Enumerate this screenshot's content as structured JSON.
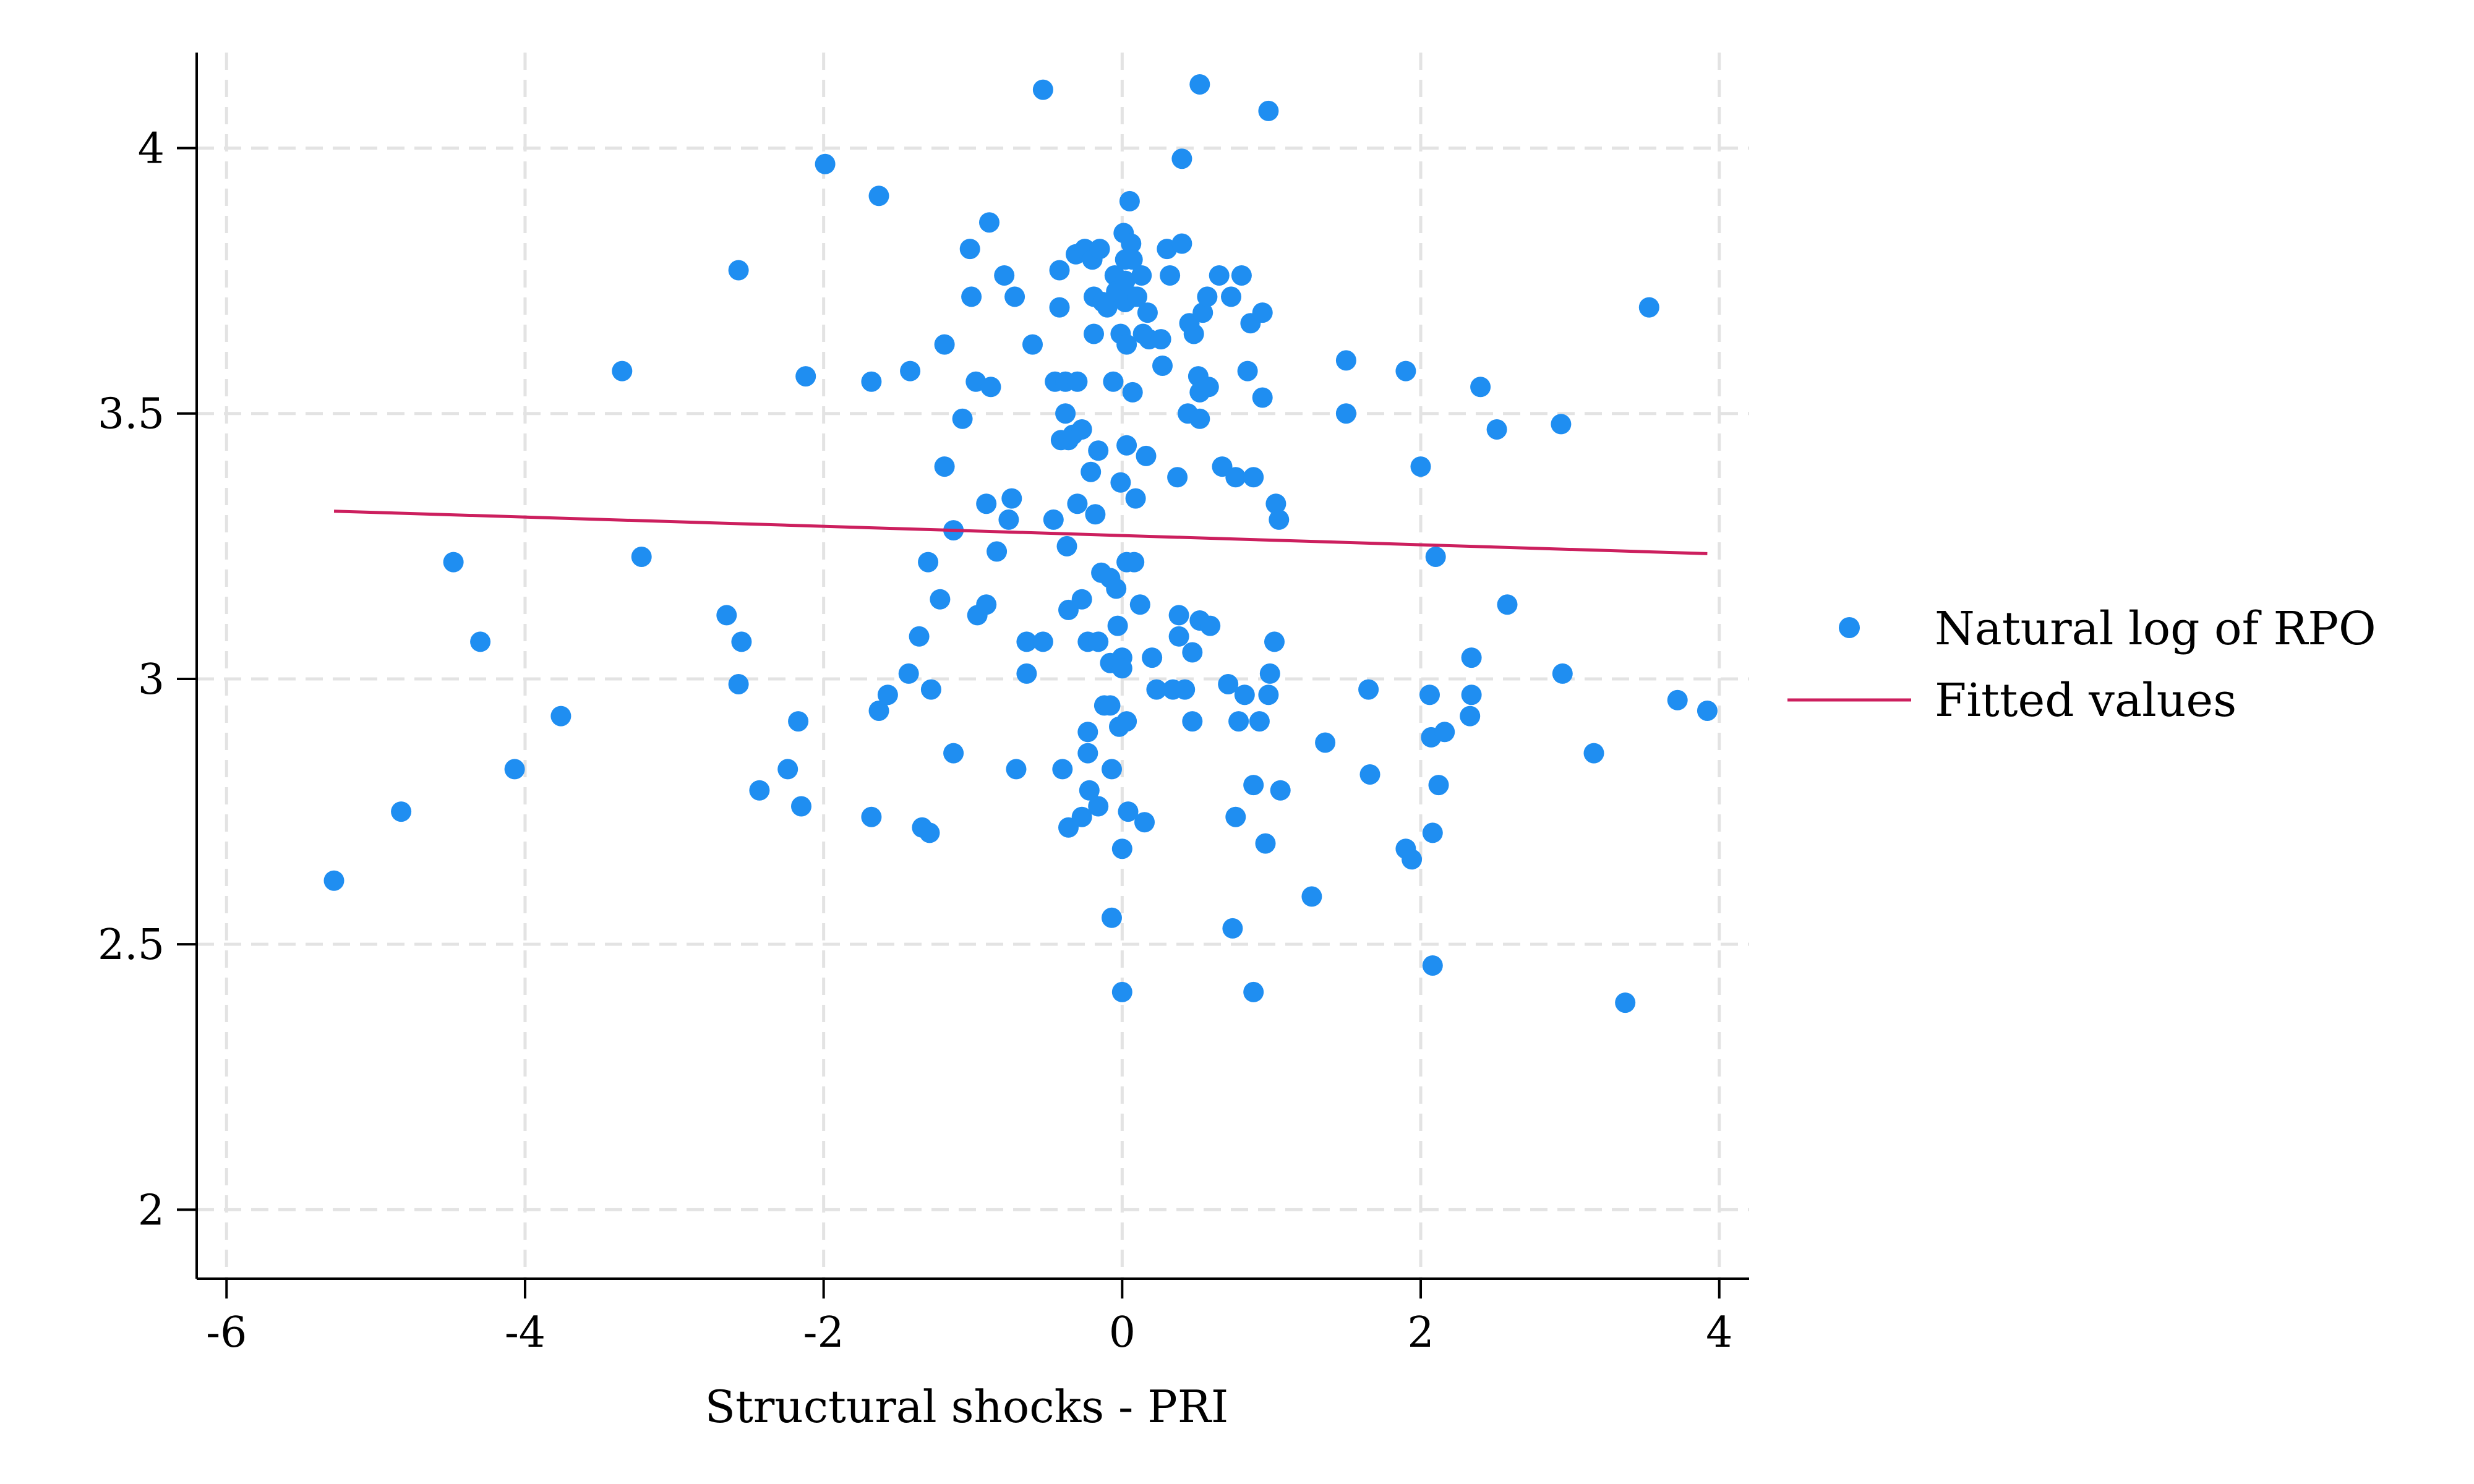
{
  "chart_data": {
    "type": "scatter",
    "title": "",
    "xlabel": "Structural shocks - PRI",
    "ylabel": "",
    "xlim": [
      -6.2,
      4.2
    ],
    "ylim": [
      1.87,
      4.18
    ],
    "x_ticks": [
      -6,
      -4,
      -2,
      0,
      2,
      4
    ],
    "x_tick_labels": [
      "-6",
      "-4",
      "-2",
      "0",
      "2",
      "4"
    ],
    "y_ticks": [
      2,
      2.5,
      3,
      3.5,
      4
    ],
    "y_tick_labels": [
      "2",
      "2.5",
      "3",
      "3.5",
      "4"
    ],
    "grid": true,
    "legend_position": "right",
    "colors": {
      "points": "#1f8ef1",
      "fit": "#cc1f5e",
      "grid": "#e3e3e3",
      "axis": "#000000"
    },
    "series": [
      {
        "name": "Natural log of RPO",
        "type": "scatter",
        "points": [
          [
            -5.28,
            2.62
          ],
          [
            -4.83,
            2.75
          ],
          [
            -4.48,
            3.22
          ],
          [
            -4.3,
            3.07
          ],
          [
            -4.07,
            2.83
          ],
          [
            -3.76,
            2.93
          ],
          [
            -3.35,
            3.58
          ],
          [
            -3.22,
            3.23
          ],
          [
            -2.65,
            3.12
          ],
          [
            -2.57,
            3.77
          ],
          [
            -2.55,
            3.07
          ],
          [
            -2.57,
            2.99
          ],
          [
            -2.43,
            2.79
          ],
          [
            -2.24,
            2.83
          ],
          [
            -2.17,
            2.92
          ],
          [
            -2.15,
            2.76
          ],
          [
            -2.12,
            3.57
          ],
          [
            -1.99,
            3.97
          ],
          [
            -1.68,
            3.56
          ],
          [
            -1.68,
            2.74
          ],
          [
            -1.63,
            3.91
          ],
          [
            -1.63,
            2.94
          ],
          [
            -1.57,
            2.97
          ],
          [
            -1.43,
            3.01
          ],
          [
            -1.42,
            3.58
          ],
          [
            -1.36,
            3.08
          ],
          [
            -1.34,
            2.72
          ],
          [
            -1.29,
            2.71
          ],
          [
            -1.3,
            3.22
          ],
          [
            -1.28,
            2.98
          ],
          [
            -1.22,
            3.15
          ],
          [
            -1.19,
            3.4
          ],
          [
            -1.19,
            3.63
          ],
          [
            -1.13,
            2.86
          ],
          [
            -1.13,
            3.28
          ],
          [
            -1.07,
            3.49
          ],
          [
            -1.02,
            3.81
          ],
          [
            -1.01,
            3.72
          ],
          [
            -0.98,
            3.56
          ],
          [
            -0.97,
            3.12
          ],
          [
            -0.91,
            3.14
          ],
          [
            -0.91,
            3.33
          ],
          [
            -0.88,
            3.55
          ],
          [
            -0.89,
            3.86
          ],
          [
            -0.84,
            3.24
          ],
          [
            -0.79,
            3.76
          ],
          [
            -0.76,
            3.3
          ],
          [
            -0.74,
            3.34
          ],
          [
            -0.72,
            3.72
          ],
          [
            -0.71,
            2.83
          ],
          [
            -0.64,
            3.07
          ],
          [
            -0.64,
            3.01
          ],
          [
            -0.6,
            3.63
          ],
          [
            -0.53,
            3.07
          ],
          [
            -0.53,
            4.11
          ],
          [
            -0.46,
            3.3
          ],
          [
            -0.45,
            3.56
          ],
          [
            -0.41,
            3.45
          ],
          [
            -0.42,
            3.7
          ],
          [
            -0.42,
            3.77
          ],
          [
            -0.4,
            2.83
          ],
          [
            -0.38,
            3.56
          ],
          [
            -0.38,
            3.5
          ],
          [
            -0.37,
            3.25
          ],
          [
            -0.36,
            3.45
          ],
          [
            -0.36,
            3.13
          ],
          [
            -0.36,
            2.72
          ],
          [
            -0.33,
            3.46
          ],
          [
            -0.31,
            3.8
          ],
          [
            -0.3,
            3.56
          ],
          [
            -0.3,
            3.33
          ],
          [
            -0.27,
            3.47
          ],
          [
            -0.27,
            3.15
          ],
          [
            -0.27,
            2.74
          ],
          [
            -0.25,
            3.81
          ],
          [
            -0.23,
            2.9
          ],
          [
            -0.23,
            3.07
          ],
          [
            -0.23,
            2.86
          ],
          [
            -0.22,
            2.79
          ],
          [
            -0.21,
            3.39
          ],
          [
            -0.2,
            3.79
          ],
          [
            -0.19,
            3.72
          ],
          [
            -0.19,
            3.65
          ],
          [
            -0.18,
            3.31
          ],
          [
            -0.16,
            3.43
          ],
          [
            -0.16,
            3.07
          ],
          [
            -0.16,
            2.76
          ],
          [
            -0.15,
            3.81
          ],
          [
            -0.14,
            3.2
          ],
          [
            -0.13,
            3.71
          ],
          [
            -0.12,
            2.95
          ],
          [
            -0.1,
            3.7
          ],
          [
            -0.08,
            3.19
          ],
          [
            -0.08,
            3.03
          ],
          [
            -0.08,
            2.95
          ],
          [
            -0.07,
            2.83
          ],
          [
            -0.07,
            2.55
          ],
          [
            -0.06,
            3.56
          ],
          [
            -0.05,
            3.76
          ],
          [
            -0.04,
            3.73
          ],
          [
            -0.04,
            3.17
          ],
          [
            -0.03,
            3.1
          ],
          [
            -0.02,
            2.91
          ],
          [
            -0.01,
            3.37
          ],
          [
            -0.01,
            3.65
          ],
          [
            0,
            3.04
          ],
          [
            0,
            3.02
          ],
          [
            0,
            2.68
          ],
          [
            0,
            2.41
          ],
          [
            0.01,
            3.84
          ],
          [
            0.02,
            3.79
          ],
          [
            0.02,
            3.75
          ],
          [
            0.02,
            3.71
          ],
          [
            0.03,
            3.63
          ],
          [
            0.03,
            3.44
          ],
          [
            0.03,
            3.22
          ],
          [
            0.03,
            2.92
          ],
          [
            0.04,
            2.75
          ],
          [
            0.05,
            3.9
          ],
          [
            0.06,
            3.82
          ],
          [
            0.07,
            3.79
          ],
          [
            0.07,
            3.54
          ],
          [
            0.08,
            3.72
          ],
          [
            0.08,
            3.22
          ],
          [
            0.09,
            3.34
          ],
          [
            0.1,
            3.72
          ],
          [
            0.12,
            3.14
          ],
          [
            0.13,
            3.76
          ],
          [
            0.14,
            3.65
          ],
          [
            0.15,
            2.73
          ],
          [
            0.16,
            3.42
          ],
          [
            0.17,
            3.69
          ],
          [
            0.18,
            3.64
          ],
          [
            0.2,
            3.04
          ],
          [
            0.23,
            2.98
          ],
          [
            0.26,
            3.64
          ],
          [
            0.27,
            3.59
          ],
          [
            0.3,
            3.81
          ],
          [
            0.32,
            3.76
          ],
          [
            0.34,
            2.98
          ],
          [
            0.37,
            3.38
          ],
          [
            0.38,
            3.12
          ],
          [
            0.38,
            3.08
          ],
          [
            0.4,
            3.82
          ],
          [
            0.4,
            3.98
          ],
          [
            0.42,
            2.98
          ],
          [
            0.44,
            3.5
          ],
          [
            0.45,
            3.67
          ],
          [
            0.47,
            3.05
          ],
          [
            0.47,
            2.92
          ],
          [
            0.48,
            3.65
          ],
          [
            0.51,
            3.57
          ],
          [
            0.52,
            3.54
          ],
          [
            0.52,
            3.49
          ],
          [
            0.52,
            3.11
          ],
          [
            0.52,
            4.12
          ],
          [
            0.54,
            3.69
          ],
          [
            0.57,
            3.72
          ],
          [
            0.58,
            3.55
          ],
          [
            0.59,
            3.1
          ],
          [
            0.65,
            3.76
          ],
          [
            0.67,
            3.4
          ],
          [
            0.71,
            2.99
          ],
          [
            0.73,
            3.72
          ],
          [
            0.74,
            2.53
          ],
          [
            0.76,
            3.38
          ],
          [
            0.76,
            2.74
          ],
          [
            0.78,
            2.92
          ],
          [
            0.8,
            3.76
          ],
          [
            0.82,
            2.97
          ],
          [
            0.84,
            3.58
          ],
          [
            0.86,
            3.67
          ],
          [
            0.88,
            3.38
          ],
          [
            0.88,
            2.8
          ],
          [
            0.88,
            2.41
          ],
          [
            0.92,
            2.92
          ],
          [
            0.94,
            3.53
          ],
          [
            0.94,
            3.69
          ],
          [
            0.96,
            2.69
          ],
          [
            0.98,
            2.97
          ],
          [
            0.98,
            4.07
          ],
          [
            0.99,
            3.01
          ],
          [
            1.02,
            3.07
          ],
          [
            1.03,
            3.33
          ],
          [
            1.05,
            3.3
          ],
          [
            1.06,
            2.79
          ],
          [
            1.27,
            2.59
          ],
          [
            1.36,
            2.88
          ],
          [
            1.5,
            3.6
          ],
          [
            1.5,
            3.5
          ],
          [
            1.65,
            2.98
          ],
          [
            1.66,
            2.82
          ],
          [
            1.9,
            3.58
          ],
          [
            1.9,
            2.68
          ],
          [
            1.94,
            2.66
          ],
          [
            2.0,
            3.4
          ],
          [
            2.06,
            2.97
          ],
          [
            2.07,
            2.89
          ],
          [
            2.08,
            2.71
          ],
          [
            2.08,
            2.46
          ],
          [
            2.1,
            3.23
          ],
          [
            2.12,
            2.8
          ],
          [
            2.16,
            2.9
          ],
          [
            2.33,
            2.93
          ],
          [
            2.34,
            3.04
          ],
          [
            2.34,
            2.97
          ],
          [
            2.4,
            3.55
          ],
          [
            2.51,
            3.47
          ],
          [
            2.58,
            3.14
          ],
          [
            2.94,
            3.48
          ],
          [
            2.95,
            3.01
          ],
          [
            3.16,
            2.86
          ],
          [
            3.37,
            2.39
          ],
          [
            3.53,
            3.7
          ],
          [
            3.72,
            2.96
          ],
          [
            3.92,
            2.94
          ]
        ]
      },
      {
        "name": "Fitted values",
        "type": "line",
        "points": [
          [
            -5.28,
            3.316
          ],
          [
            3.92,
            3.236
          ]
        ]
      }
    ]
  }
}
